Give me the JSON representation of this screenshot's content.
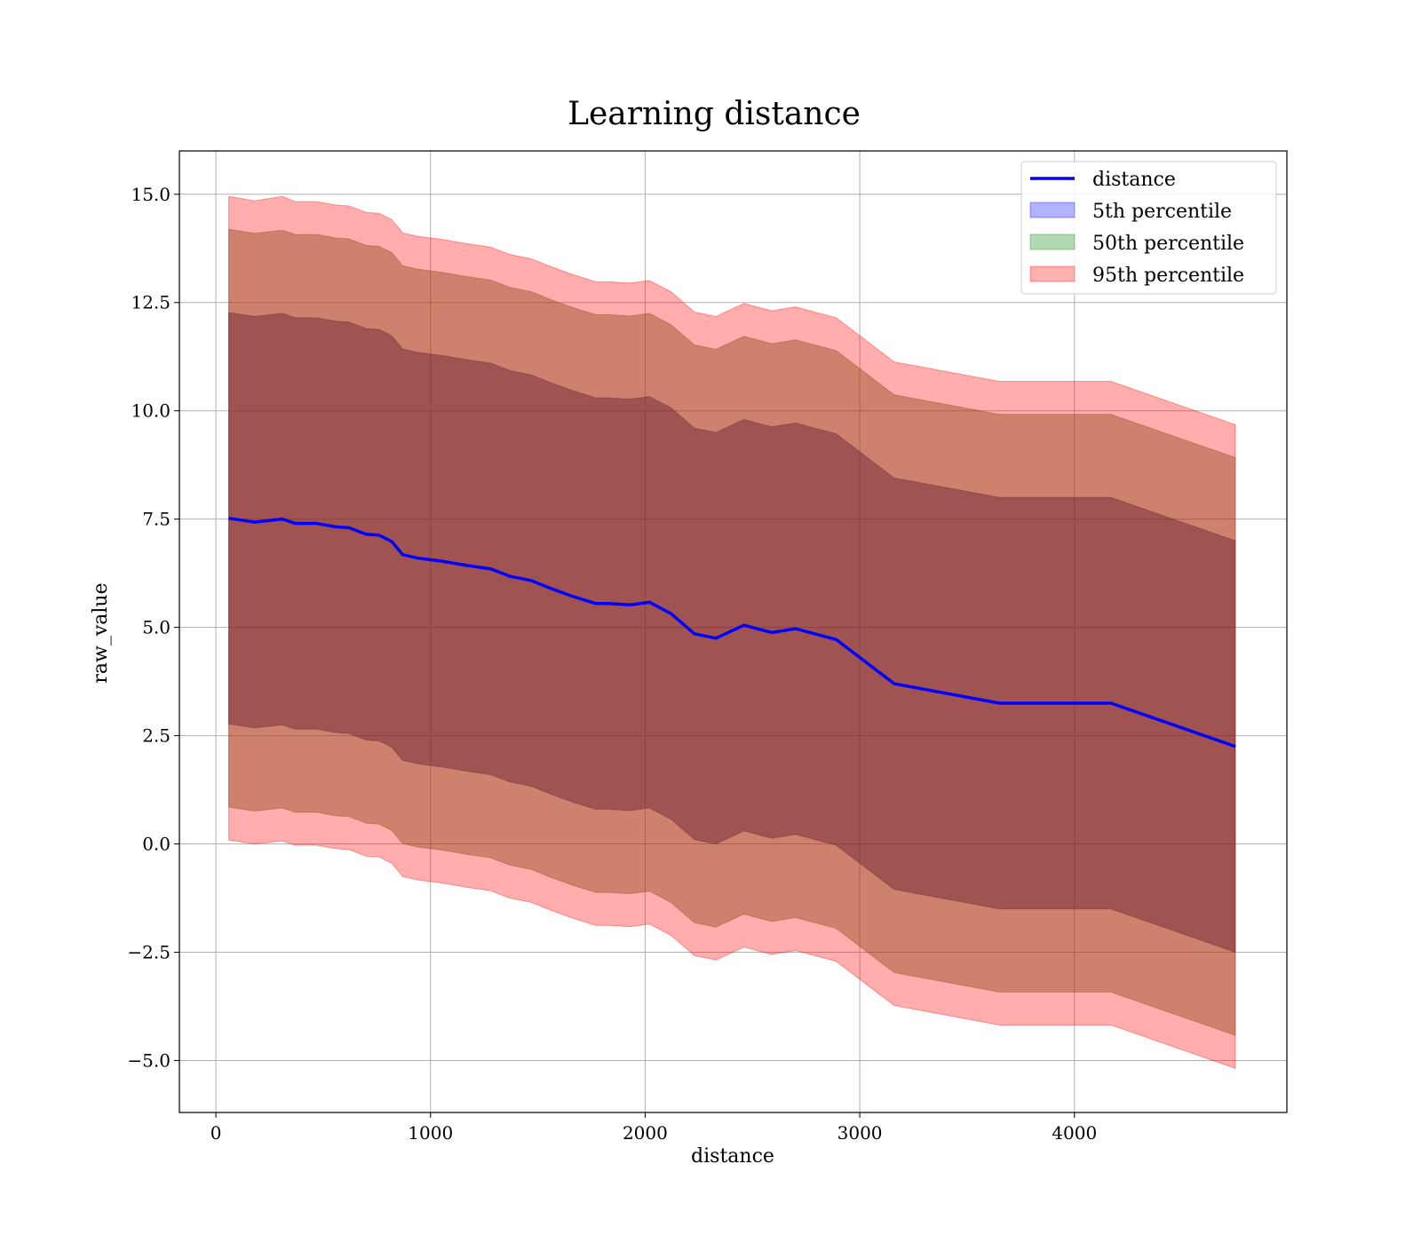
{
  "chart_data": {
    "type": "area",
    "title": "Learning distance",
    "xlabel": "distance",
    "ylabel": "raw_value",
    "xlim": [
      -170,
      4990
    ],
    "ylim": [
      -6.2,
      16.0
    ],
    "xticks": [
      0,
      1000,
      2000,
      3000,
      4000
    ],
    "yticks": [
      -5.0,
      -2.5,
      0.0,
      2.5,
      5.0,
      7.5,
      10.0,
      12.5,
      15.0
    ],
    "xtick_labels": [
      "0",
      "1000",
      "2000",
      "3000",
      "4000"
    ],
    "ytick_labels": [
      "−5.0",
      "−2.5",
      "0.0",
      "2.5",
      "5.0",
      "7.5",
      "10.0",
      "12.5",
      "15.0"
    ],
    "grid": true,
    "legend_position": "top-right",
    "legend": [
      "distance",
      "5th percentile",
      "50th percentile",
      "95th percentile"
    ],
    "colors": {
      "line": "#0000ff",
      "p5": "#0000ff",
      "p50": "#008000",
      "p95": "#ff0000",
      "band_alpha": 0.3
    },
    "x": [
      60,
      180,
      310,
      370,
      470,
      560,
      620,
      700,
      760,
      820,
      870,
      940,
      1050,
      1170,
      1280,
      1370,
      1470,
      1560,
      1660,
      1770,
      1830,
      1930,
      2020,
      2120,
      2230,
      2330,
      2460,
      2590,
      2700,
      2890,
      3160,
      3650,
      4170,
      4750
    ],
    "series": [
      {
        "name": "distance",
        "values": [
          7.52,
          7.43,
          7.5,
          7.4,
          7.4,
          7.32,
          7.3,
          7.15,
          7.13,
          6.98,
          6.68,
          6.6,
          6.53,
          6.43,
          6.35,
          6.18,
          6.08,
          5.9,
          5.72,
          5.55,
          5.55,
          5.52,
          5.58,
          5.32,
          4.85,
          4.75,
          5.05,
          4.88,
          4.97,
          4.72,
          3.7,
          3.25,
          3.25,
          2.25
        ]
      }
    ],
    "bands": [
      {
        "name": "95th percentile",
        "upper": [
          14.95,
          14.85,
          14.95,
          14.83,
          14.83,
          14.75,
          14.73,
          14.58,
          14.56,
          14.41,
          14.11,
          14.03,
          13.96,
          13.86,
          13.78,
          13.61,
          13.51,
          13.33,
          13.15,
          12.98,
          12.98,
          12.95,
          13.01,
          12.75,
          12.28,
          12.18,
          12.48,
          12.31,
          12.4,
          12.15,
          11.13,
          10.68,
          10.68,
          9.68
        ],
        "lower": [
          0.09,
          0.0,
          0.07,
          -0.03,
          -0.03,
          -0.11,
          -0.13,
          -0.28,
          -0.3,
          -0.45,
          -0.75,
          -0.83,
          -0.9,
          -1.0,
          -1.08,
          -1.25,
          -1.35,
          -1.53,
          -1.71,
          -1.88,
          -1.88,
          -1.91,
          -1.85,
          -2.11,
          -2.58,
          -2.68,
          -2.38,
          -2.55,
          -2.46,
          -2.71,
          -3.73,
          -4.18,
          -4.18,
          -5.18
        ]
      },
      {
        "name": "50th percentile",
        "upper": [
          14.19,
          14.1,
          14.17,
          14.07,
          14.07,
          13.99,
          13.97,
          13.82,
          13.8,
          13.65,
          13.35,
          13.27,
          13.2,
          13.1,
          13.02,
          12.85,
          12.75,
          12.57,
          12.39,
          12.22,
          12.22,
          12.19,
          12.25,
          11.99,
          11.52,
          11.42,
          11.72,
          11.55,
          11.64,
          11.39,
          10.37,
          9.92,
          9.92,
          8.92
        ],
        "lower": [
          0.85,
          0.76,
          0.83,
          0.73,
          0.73,
          0.65,
          0.63,
          0.48,
          0.46,
          0.31,
          0.01,
          -0.07,
          -0.14,
          -0.24,
          -0.32,
          -0.49,
          -0.59,
          -0.77,
          -0.95,
          -1.12,
          -1.12,
          -1.15,
          -1.09,
          -1.35,
          -1.82,
          -1.92,
          -1.62,
          -1.79,
          -1.7,
          -1.95,
          -2.97,
          -3.42,
          -3.42,
          -4.42
        ]
      },
      {
        "name": "5th percentile",
        "upper": [
          12.27,
          12.18,
          12.25,
          12.15,
          12.15,
          12.07,
          12.05,
          11.9,
          11.88,
          11.73,
          11.43,
          11.35,
          11.28,
          11.18,
          11.1,
          10.93,
          10.83,
          10.65,
          10.47,
          10.3,
          10.3,
          10.27,
          10.33,
          10.07,
          9.6,
          9.5,
          9.8,
          9.63,
          9.72,
          9.47,
          8.45,
          8.0,
          8.0,
          7.0
        ],
        "lower": [
          2.77,
          2.68,
          2.75,
          2.65,
          2.65,
          2.57,
          2.55,
          2.4,
          2.38,
          2.23,
          1.93,
          1.85,
          1.78,
          1.68,
          1.6,
          1.43,
          1.33,
          1.15,
          0.97,
          0.8,
          0.8,
          0.77,
          0.83,
          0.57,
          0.1,
          0.0,
          0.3,
          0.13,
          0.22,
          -0.03,
          -1.05,
          -1.5,
          -1.5,
          -2.5
        ]
      }
    ]
  }
}
